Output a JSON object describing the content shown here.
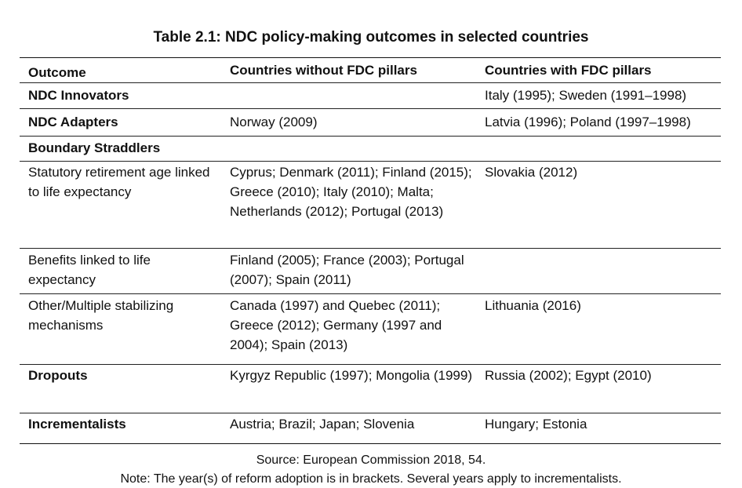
{
  "title": "Table 2.1:  NDC policy-making outcomes in selected countries",
  "headers": {
    "outcome": "Outcome",
    "without": "Countries without FDC pillars",
    "with": "Countries with FDC pillars"
  },
  "rows": [
    {
      "outcome": "NDC Innovators",
      "without": "",
      "with": "Italy (1995); Sweden (1991–1998)"
    },
    {
      "outcome": "NDC Adapters",
      "without": "Norway (2009)",
      "with": "Latvia (1996); Poland (1997–1998)"
    },
    {
      "outcome": "Boundary Straddlers",
      "without": "",
      "with": ""
    },
    {
      "outcome": "Statutory retirement age linked to life expectancy",
      "without": "Cyprus; Denmark (2011); Finland (2015); Greece (2010); Italy (2010); Malta; Netherlands (2012); Portugal (2013)",
      "with": "Slovakia (2012)"
    },
    {
      "outcome": "Benefits linked to life expectancy",
      "without": "Finland (2005); France (2003); Portugal (2007); Spain (2011)",
      "with": ""
    },
    {
      "outcome": "Other/Multiple stabilizing mechanisms",
      "without": "Canada (1997) and Quebec (2011); Greece (2012); Germany (1997 and 2004); Spain (2013)",
      "with": "Lithuania (2016)"
    },
    {
      "outcome": "Dropouts",
      "without": "Kyrgyz Republic (1997); Mongolia (1999)",
      "with": "Russia (2002); Egypt (2010)"
    },
    {
      "outcome": "Incrementalists",
      "without": "Austria; Brazil; Japan; Slovenia",
      "with": "Hungary; Estonia"
    }
  ],
  "source": "Source: European Commission 2018, 54.",
  "note": "Note: The year(s) of reform adoption is in brackets. Several years apply to incrementalists."
}
